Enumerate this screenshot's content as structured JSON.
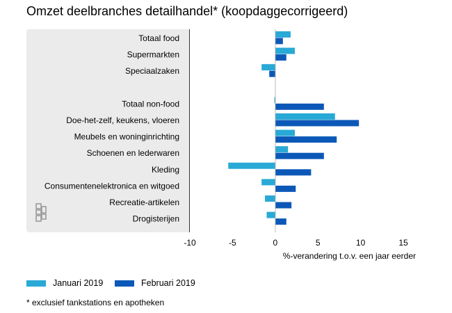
{
  "chart_data": {
    "type": "bar",
    "orientation": "horizontal",
    "title": "Omzet deelbranches detailhandel* (koopdaggecorrigeerd)",
    "xlabel": "%-verandering t.o.v. een jaar eerder",
    "ylabel": "",
    "xlim": [
      -10,
      15
    ],
    "xticks": [
      -10,
      -5,
      0,
      5,
      10,
      15
    ],
    "categories": [
      "Totaal food",
      "Supermarkten",
      "Speciaalzaken",
      "",
      "Totaal non-food",
      "Doe-het-zelf, keukens, vloeren",
      "Meubels en woninginrichting",
      "Schoenen en lederwaren",
      "Kleding",
      "Consumentenelektronica en witgoed",
      "Recreatie-artikelen",
      "Drogisterijen"
    ],
    "series": [
      {
        "name": "Januari 2019",
        "color": "#29a9d6",
        "values": [
          1.8,
          2.3,
          -1.6,
          null,
          -0.1,
          7.0,
          2.3,
          1.5,
          -5.5,
          -1.6,
          -1.2,
          -1.0
        ]
      },
      {
        "name": "Februari 2019",
        "color": "#0c58b8",
        "values": [
          0.9,
          1.3,
          -0.7,
          null,
          5.7,
          9.8,
          7.2,
          5.7,
          4.2,
          2.4,
          1.9,
          1.3
        ]
      }
    ],
    "footnote": "* exclusief tankstations en apotheken"
  }
}
